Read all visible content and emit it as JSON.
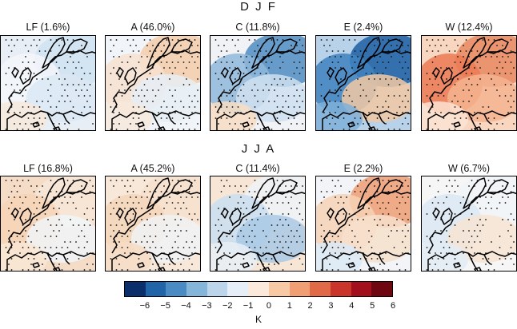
{
  "rows": [
    {
      "title": "D J F",
      "panels": [
        {
          "title": "LF (1.6%)",
          "palette": [
            "#cfe3f1",
            "#f3f6fa",
            "#dbe8f3",
            "#f7e9dc",
            "#e8eef6"
          ]
        },
        {
          "title": "A (46.0%)",
          "palette": [
            "#f3cba9",
            "#f7e2d0",
            "#e6eef6",
            "#f7e9dc",
            "#f1f4f8"
          ]
        },
        {
          "title": "C (11.8%)",
          "palette": [
            "#4d8cc2",
            "#8fb9dc",
            "#cfe1f0",
            "#f8ddc3",
            "#f0f2f5"
          ]
        },
        {
          "title": "E (2.4%)",
          "palette": [
            "#1d5fa3",
            "#3f82bf",
            "#f3c9a3",
            "#7fb0d8",
            "#b7d2e9"
          ]
        },
        {
          "title": "W (12.4%)",
          "palette": [
            "#e88a62",
            "#ec7a53",
            "#f4b48f",
            "#fbe3d2",
            "#f9d6bf"
          ]
        }
      ]
    },
    {
      "title": "J J A",
      "panels": [
        {
          "title": "LF (16.8%)",
          "palette": [
            "#f7e7d8",
            "#f6d3b6",
            "#f1f4f8",
            "#f8e6d4",
            "#f5dcc6"
          ]
        },
        {
          "title": "A (45.2%)",
          "palette": [
            "#f7e1cc",
            "#f5d6ba",
            "#f0f2f5",
            "#f6dcc4",
            "#f8e8da"
          ]
        },
        {
          "title": "C (11.4%)",
          "palette": [
            "#eef2f7",
            "#c9def0",
            "#a9c9e5",
            "#e7eef6",
            "#f7e6d6"
          ]
        },
        {
          "title": "E (2.2%)",
          "palette": [
            "#ef9c74",
            "#f6d2b5",
            "#f7e1cd",
            "#dce9f4",
            "#f2f4f8"
          ]
        },
        {
          "title": "W (6.7%)",
          "palette": [
            "#f1f4f8",
            "#dbe7f3",
            "#f7e4d2",
            "#e3ecf5",
            "#f6f6f6"
          ]
        }
      ]
    }
  ],
  "colorbar": {
    "colors": [
      "#0b2f6b",
      "#2165a8",
      "#4a8bc4",
      "#86b5da",
      "#bcd5ea",
      "#e6eff7",
      "#fbeadb",
      "#f7c9a4",
      "#f09e74",
      "#e06a48",
      "#c9352b",
      "#a1101c",
      "#6e0710"
    ],
    "ticks": [
      "−6",
      "−5",
      "−4",
      "−3",
      "−2",
      "−1",
      "0",
      "1",
      "2",
      "3",
      "4",
      "5",
      "6"
    ],
    "unit": "K"
  }
}
